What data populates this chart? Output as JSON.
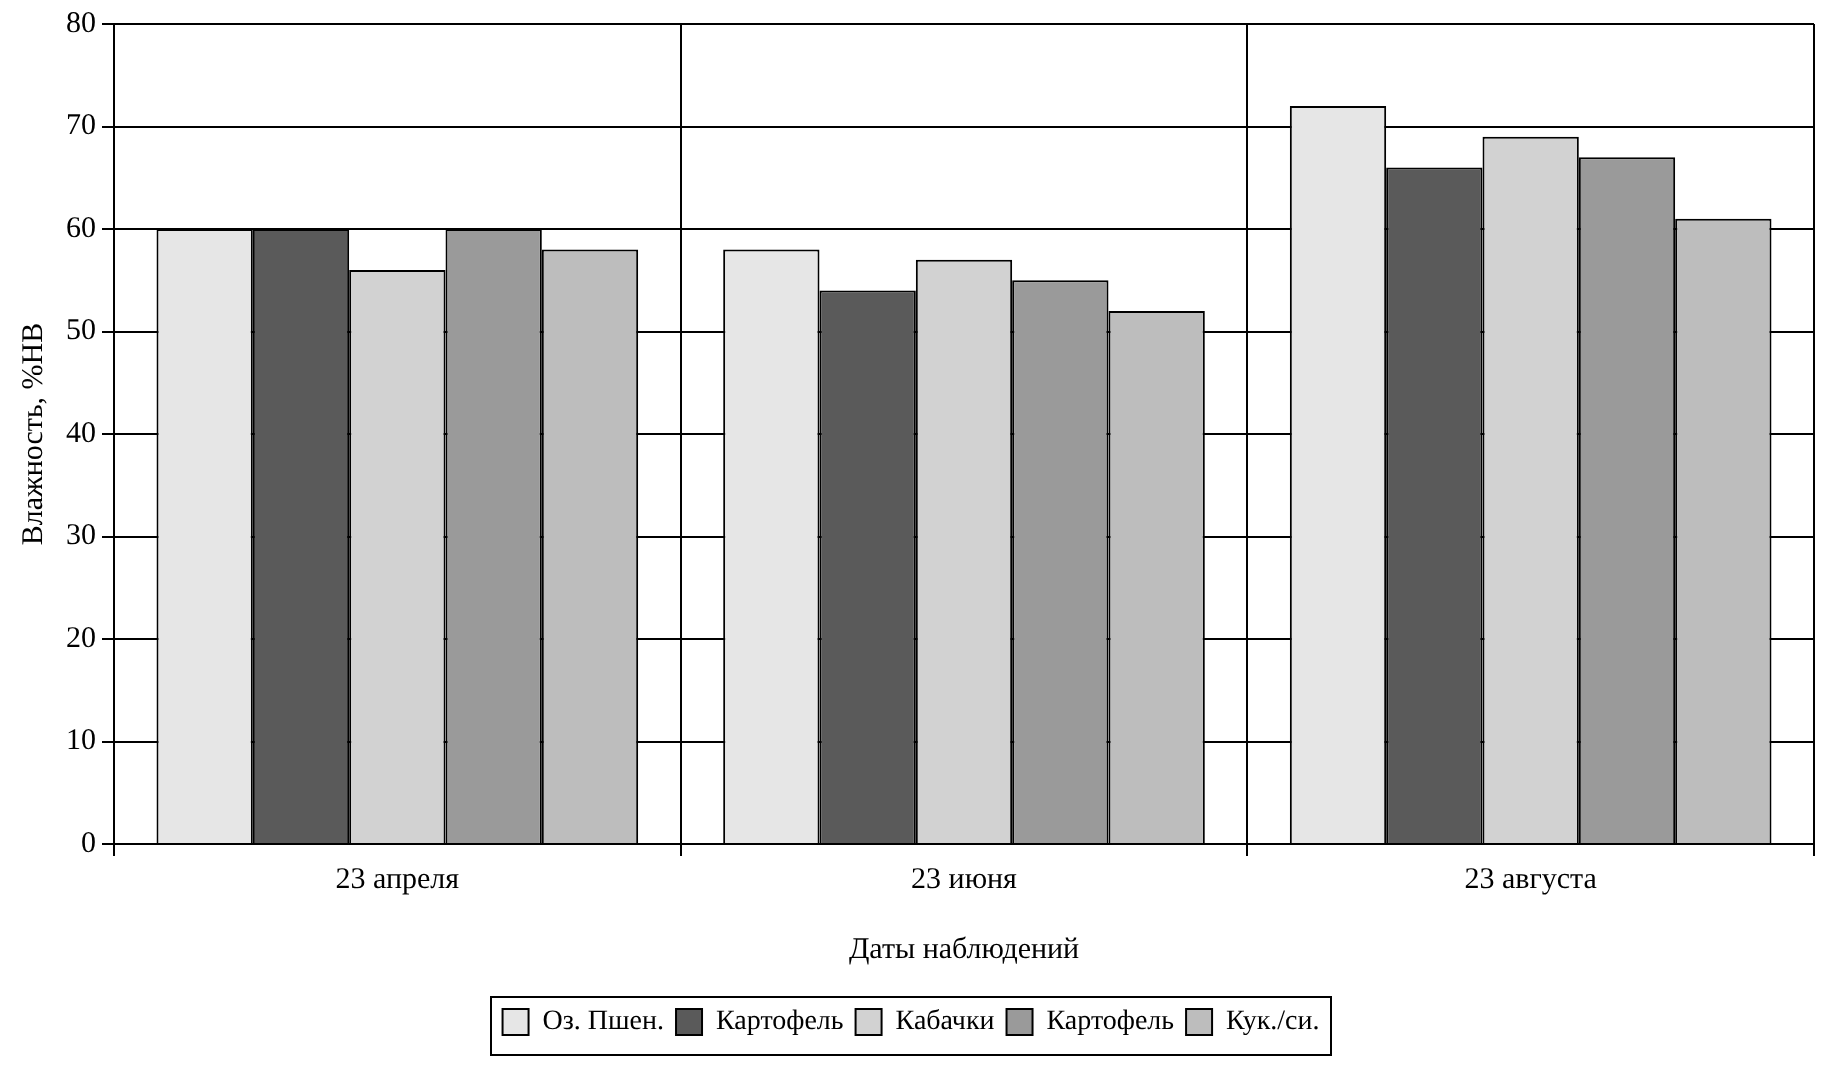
{
  "chart_data": {
    "type": "bar",
    "xlabel": "Даты наблюдений",
    "ylabel": "Влажность, %НВ",
    "categories": [
      "23 апреля",
      "23 июня",
      "23 августа"
    ],
    "series": [
      {
        "name": "Оз. Пшен.",
        "color": "#e6e6e6",
        "values": [
          60,
          58,
          72
        ]
      },
      {
        "name": "Картофель",
        "color": "#5a5a5a",
        "values": [
          60,
          54,
          66
        ]
      },
      {
        "name": "Кабачки",
        "color": "#d2d2d2",
        "values": [
          56,
          57,
          69
        ]
      },
      {
        "name": "Картофель",
        "color": "#9a9a9a",
        "values": [
          60,
          55,
          67
        ]
      },
      {
        "name": "Кук./си.",
        "color": "#bdbdbd",
        "values": [
          58,
          52,
          61
        ]
      }
    ],
    "ylim": [
      0,
      80
    ],
    "yticks": [
      0,
      10,
      20,
      30,
      40,
      50,
      60,
      70,
      80
    ],
    "grid": true,
    "legend": "bottom"
  }
}
